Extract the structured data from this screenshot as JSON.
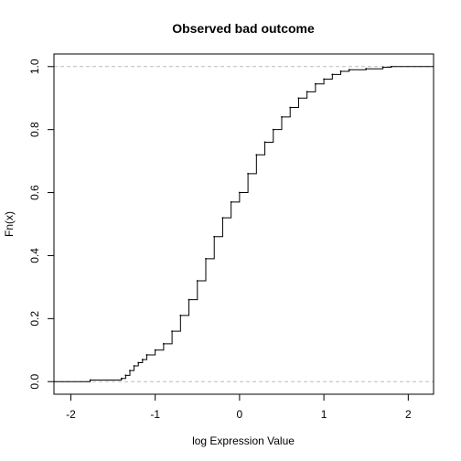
{
  "chart_data": {
    "type": "line",
    "subtype": "empirical-cdf",
    "title": "Observed bad outcome",
    "xlabel": "log Expression Value",
    "ylabel": "Fn(x)",
    "xlim": [
      -2.2,
      2.3
    ],
    "ylim": [
      -0.04,
      1.04
    ],
    "xticks": [
      -2,
      -1,
      0,
      1,
      2
    ],
    "yticks": [
      0.0,
      0.2,
      0.4,
      0.6,
      0.8,
      1.0
    ],
    "xtick_labels": [
      "-2",
      "-1",
      "0",
      "1",
      "2"
    ],
    "ytick_labels": [
      "0.0",
      "0.2",
      "0.4",
      "0.6",
      "0.8",
      "1.0"
    ],
    "reference_lines_y": [
      0,
      1
    ],
    "curve_x": [
      -2.2,
      -1.77,
      -1.4,
      -1.35,
      -1.3,
      -1.25,
      -1.2,
      -1.15,
      -1.1,
      -1.0,
      -0.9,
      -0.8,
      -0.7,
      -0.6,
      -0.5,
      -0.4,
      -0.3,
      -0.2,
      -0.1,
      0.0,
      0.1,
      0.2,
      0.3,
      0.4,
      0.5,
      0.6,
      0.7,
      0.8,
      0.9,
      1.0,
      1.1,
      1.2,
      1.3,
      1.5,
      1.7,
      1.8,
      2.3
    ],
    "curve_y": [
      0.0,
      0.005,
      0.01,
      0.02,
      0.035,
      0.05,
      0.06,
      0.07,
      0.085,
      0.1,
      0.12,
      0.16,
      0.21,
      0.26,
      0.32,
      0.39,
      0.46,
      0.52,
      0.57,
      0.6,
      0.66,
      0.72,
      0.76,
      0.8,
      0.84,
      0.87,
      0.9,
      0.92,
      0.945,
      0.96,
      0.975,
      0.985,
      0.99,
      0.993,
      0.998,
      1.0,
      1.0
    ]
  }
}
